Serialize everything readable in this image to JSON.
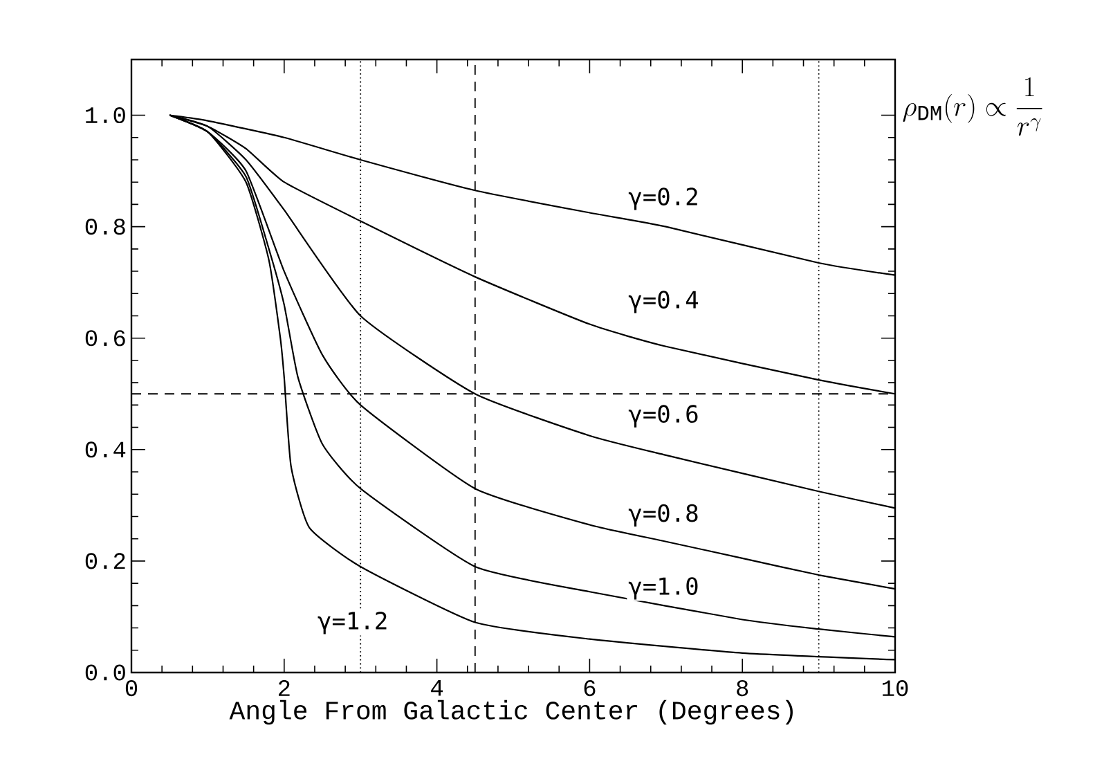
{
  "chart_data": {
    "type": "line",
    "xlabel": "Angle From Galactic Center (Degrees)",
    "xlim": [
      0,
      10
    ],
    "xticks": [
      0,
      2,
      4,
      6,
      8,
      10
    ],
    "ylim": [
      0,
      1.1
    ],
    "yticks": [
      {
        "value": 0,
        "label": "0.0"
      },
      0.2,
      0.4,
      0.6,
      0.8,
      {
        "value": 1,
        "label": "1.0"
      }
    ],
    "annotations": [
      "\\rho_{\\mathrm{DM}}(r) \\propto \\frac{1}{r^{\\gamma}}"
    ],
    "ref_lines": [
      {
        "axis": "y",
        "value": 0.5,
        "line_style": "dashed"
      },
      {
        "axis": "x",
        "value": 4.5,
        "line_style": "dashed"
      },
      {
        "axis": "x",
        "value": 3,
        "line_style": "dotted"
      },
      {
        "axis": "x",
        "value": 9,
        "line_style": "dotted"
      }
    ],
    "series": [
      {
        "name": "γ=0.2",
        "color": "#000000",
        "x": [
          0.5,
          1,
          2,
          3,
          4.5,
          6,
          7,
          9,
          10
        ],
        "values": [
          1.0,
          0.99,
          0.96,
          0.92,
          0.865,
          0.825,
          0.8,
          0.735,
          0.713
        ]
      },
      {
        "name": "γ=0.4",
        "color": "#000000",
        "x": [
          0.5,
          1,
          1.5,
          2,
          3,
          4.5,
          6,
          7,
          9,
          10
        ],
        "values": [
          1.0,
          0.98,
          0.94,
          0.88,
          0.81,
          0.71,
          0.625,
          0.585,
          0.525,
          0.5
        ]
      },
      {
        "name": "γ=0.6",
        "color": "#000000",
        "x": [
          0.5,
          1,
          1.5,
          2,
          3,
          4.5,
          6,
          7,
          9,
          10
        ],
        "values": [
          1.0,
          0.98,
          0.92,
          0.83,
          0.64,
          0.5,
          0.425,
          0.39,
          0.325,
          0.295
        ]
      },
      {
        "name": "γ=0.8",
        "color": "#000000",
        "x": [
          0.5,
          1,
          1.5,
          2,
          2.5,
          3,
          4.5,
          6,
          7,
          8,
          9,
          10
        ],
        "values": [
          1.0,
          0.97,
          0.9,
          0.72,
          0.57,
          0.48,
          0.33,
          0.265,
          0.235,
          0.205,
          0.175,
          0.15
        ]
      },
      {
        "name": "γ=1.0",
        "color": "#000000",
        "x": [
          0.5,
          1,
          1.5,
          1.8,
          2,
          2.18,
          2.5,
          3,
          4.5,
          6,
          8,
          9,
          10
        ],
        "values": [
          1.0,
          0.97,
          0.89,
          0.76,
          0.66,
          0.53,
          0.41,
          0.33,
          0.19,
          0.145,
          0.095,
          0.078,
          0.064
        ]
      },
      {
        "name": "γ=1.2",
        "color": "#000000",
        "x": [
          0.5,
          1,
          1.5,
          1.8,
          1.95,
          2,
          2.09,
          2.33,
          3,
          4.5,
          6,
          8,
          10
        ],
        "values": [
          1.0,
          0.97,
          0.88,
          0.74,
          0.6,
          0.53,
          0.37,
          0.26,
          0.19,
          0.09,
          0.06,
          0.035,
          0.023
        ]
      }
    ]
  }
}
